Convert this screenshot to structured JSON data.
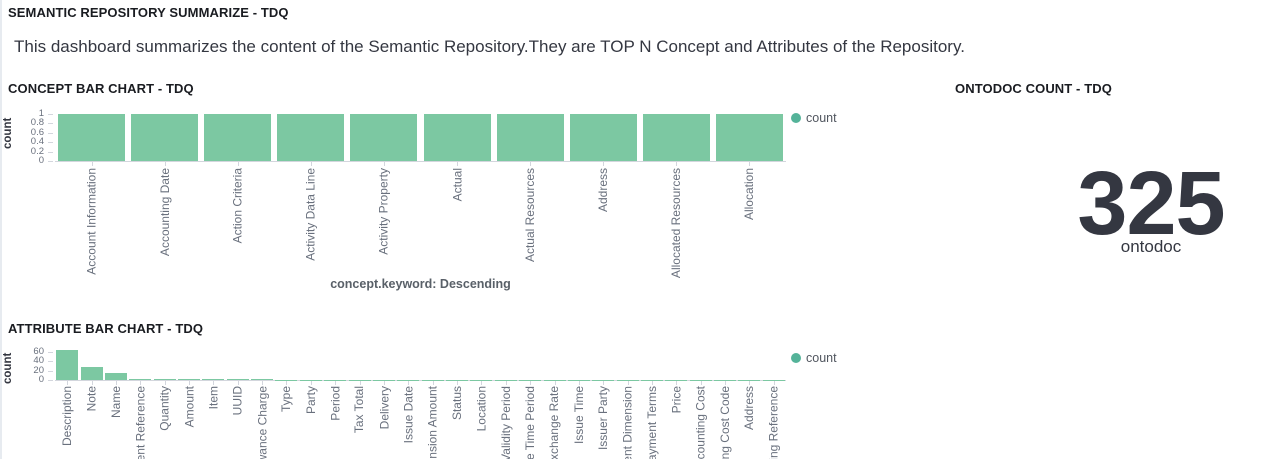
{
  "page": {
    "title": "SEMANTIC REPOSITORY SUMMARIZE - TDQ",
    "description": "This dashboard summarizes the content of the Semantic Repository.They are TOP N Concept and Attributes of the Repository."
  },
  "colors": {
    "bar_fill": "#7cc8a2",
    "legend_dot": "#54b399",
    "axis_line": "#d3d6dd",
    "tick_text": "#69707d"
  },
  "panels": {
    "concept": {
      "title": "CONCEPT BAR CHART - TDQ"
    },
    "ontodoc": {
      "title": "ONTODOC COUNT - TDQ",
      "value": "325",
      "label": "ontodoc"
    },
    "attribute": {
      "title": "ATTRIBUTE BAR CHART - TDQ"
    }
  },
  "chart_data": [
    {
      "id": "concept",
      "type": "bar",
      "title": "CONCEPT BAR CHART - TDQ",
      "categories": [
        "Account Information",
        "Accounting Date",
        "Action Criteria",
        "Activity Data Line",
        "Activity Property",
        "Actual",
        "Actual Resources",
        "Address",
        "Allocated Resources",
        "Allocation"
      ],
      "values": [
        1,
        1,
        1,
        1,
        1,
        1,
        1,
        1,
        1,
        1
      ],
      "xlabel": "concept.keyword: Descending",
      "ylabel": "count",
      "yticks": [
        0,
        0.2,
        0.4,
        0.6,
        0.8,
        1
      ],
      "ytick_labels": [
        "0",
        "0.2",
        "0.4",
        "0.6",
        "0.8",
        "1"
      ],
      "ylim": [
        0,
        1
      ],
      "grid": false,
      "legend": "count",
      "legend_position": "top-right"
    },
    {
      "id": "attribute",
      "type": "bar",
      "title": "ATTRIBUTE BAR CHART - TDQ",
      "categories": [
        "Description",
        "Note",
        "Name",
        "ent Reference",
        "Quantity",
        "Amount",
        "Item",
        "UUID",
        "wance Charge",
        "Type",
        "Party",
        "Period",
        "Tax Total",
        "Delivery",
        "Issue Date",
        "nsion Amount",
        "Status",
        "Location",
        "Validity Period",
        "e Time Period",
        "Exchange Rate",
        "Issue Time",
        "Issuer Party",
        "ent Dimension",
        "ayment Terms",
        "Price",
        "counting Cost",
        "ing Cost Code",
        "Address",
        "ling Reference"
      ],
      "values": [
        63,
        28,
        15,
        2,
        2,
        2,
        2,
        2,
        2,
        1,
        1,
        1,
        1,
        1,
        1,
        1,
        1,
        1,
        1,
        1,
        1,
        1,
        1,
        1,
        1,
        1,
        1,
        1,
        1,
        1
      ],
      "xlabel": "",
      "ylabel": "count",
      "yticks": [
        0,
        20,
        40,
        60
      ],
      "ytick_labels": [
        "0",
        "20",
        "40",
        "60"
      ],
      "ylim": [
        0,
        70
      ],
      "grid": false,
      "legend": "count",
      "legend_position": "top-right"
    },
    {
      "id": "ontodoc",
      "type": "metric",
      "title": "ONTODOC COUNT - TDQ",
      "value": 325,
      "label": "ontodoc"
    }
  ]
}
